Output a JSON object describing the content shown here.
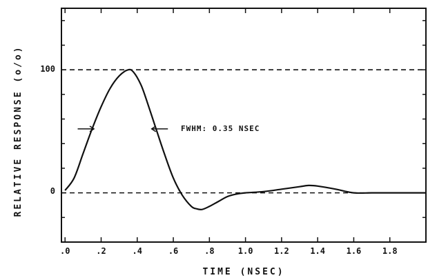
{
  "chart_data": {
    "type": "line",
    "xlabel": "TIME (NSEC)",
    "ylabel": "RELATIVE RESPONSE (o/o)",
    "xlim": [
      -0.02,
      2.0
    ],
    "ylim": [
      -40,
      150
    ],
    "x_ticks": [
      0.0,
      0.2,
      0.4,
      0.6,
      0.8,
      1.0,
      1.2,
      1.4,
      1.6,
      1.8
    ],
    "x_tick_labels": [
      ".0",
      ".2",
      ".4",
      ".6",
      ".8",
      "1.0",
      "1.2",
      "1.4",
      "1.6",
      "1.8"
    ],
    "y_tick_labels": [
      {
        "value": 0,
        "label": "0"
      },
      {
        "value": 100,
        "label": "100"
      }
    ],
    "reference_lines": [
      {
        "y": 100,
        "style": "dashed"
      },
      {
        "y": 0,
        "style": "dashed"
      }
    ],
    "annotation": {
      "text": "FWHM: 0.35 NSEC",
      "y": 52,
      "arrow_left_x": [
        0.07,
        0.16
      ],
      "arrow_right_x": [
        0.57,
        0.48
      ]
    },
    "grid": false,
    "series": [
      {
        "x": [
          0.0,
          0.05,
          0.1,
          0.15,
          0.2,
          0.25,
          0.3,
          0.35,
          0.38,
          0.42,
          0.45,
          0.5,
          0.55,
          0.6,
          0.65,
          0.7,
          0.73,
          0.76,
          0.8,
          0.85,
          0.9,
          0.95,
          1.0,
          1.1,
          1.2,
          1.3,
          1.35,
          1.4,
          1.5,
          1.6,
          1.7,
          1.8,
          1.9,
          2.0
        ],
        "y": [
          2,
          12,
          32,
          52,
          70,
          85,
          95,
          100,
          98,
          88,
          76,
          54,
          32,
          12,
          -2,
          -11,
          -13,
          -13.5,
          -11,
          -7,
          -3,
          -1,
          0,
          1,
          3,
          5,
          6,
          5.5,
          3,
          0,
          0,
          0,
          0,
          0
        ]
      }
    ]
  }
}
